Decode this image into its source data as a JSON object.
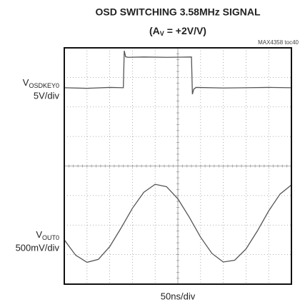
{
  "chart_data": {
    "type": "line",
    "title": "OSD SWITCHING 3.58MHz SIGNAL",
    "subtitle": [
      "(A",
      "V",
      " = +2V/V)"
    ],
    "annotation": "MAX4358 toc40",
    "xlabel": "50ns/div",
    "xlim": [
      0,
      10
    ],
    "ylim": [
      -4,
      4
    ],
    "xticks": [
      0,
      1,
      2,
      3,
      4,
      5,
      6,
      7,
      8,
      9,
      10
    ],
    "yticks": [
      -4,
      -3,
      -2,
      -1,
      0,
      1,
      2,
      3,
      4
    ],
    "grid": true,
    "series": [
      {
        "name": "V",
        "name_sub": "OSDKEY0",
        "scale": "5V/div",
        "color": "#555555",
        "x": [
          0,
          1,
          2,
          2.6,
          2.64,
          2.7,
          2.8,
          3.5,
          4.5,
          5.6,
          5.64,
          5.7,
          5.8,
          7,
          8,
          9,
          10
        ],
        "values": [
          2.65,
          2.63,
          2.66,
          2.65,
          3.9,
          3.7,
          3.68,
          3.69,
          3.68,
          3.69,
          2.43,
          2.6,
          2.66,
          2.64,
          2.65,
          2.66,
          2.65
        ]
      },
      {
        "name": "V",
        "name_sub": "OUT0",
        "scale": "500mV/div",
        "color": "#555555",
        "x": [
          0,
          0.5,
          1,
          1.5,
          2,
          2.5,
          3,
          3.5,
          4,
          4.5,
          5,
          5.5,
          6,
          6.5,
          7,
          7.5,
          8,
          8.5,
          9,
          9.5,
          10
        ],
        "values": [
          -2.5,
          -3.02,
          -3.26,
          -3.16,
          -2.73,
          -2.1,
          -1.43,
          -0.89,
          -0.62,
          -0.7,
          -1.11,
          -1.73,
          -2.41,
          -2.96,
          -3.25,
          -3.19,
          -2.81,
          -2.2,
          -1.52,
          -0.95,
          -0.64
        ]
      }
    ]
  }
}
